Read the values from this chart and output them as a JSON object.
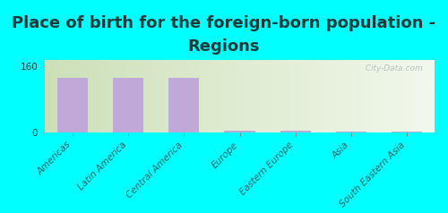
{
  "title_line1": "Place of birth for the foreign-born population -",
  "title_line2": "Regions",
  "categories": [
    "Americas",
    "Latin America",
    "Central America",
    "Europe",
    "Eastern Europe",
    "Asia",
    "South Eastern Asia"
  ],
  "values": [
    130,
    130,
    130,
    3,
    4,
    1,
    1
  ],
  "bar_color": "#c0a8d8",
  "background_color": "#00ffff",
  "ylim": [
    0,
    175
  ],
  "yticks": [
    0,
    160
  ],
  "watermark": "  City-Data.com",
  "title_fontsize": 13,
  "tick_fontsize": 7.5,
  "title_color": "#1a3a3a",
  "tick_color": "#2a6060",
  "bar_width": 0.55,
  "plot_bg_left": "#cce0c0",
  "plot_bg_right": "#f0f5e8"
}
